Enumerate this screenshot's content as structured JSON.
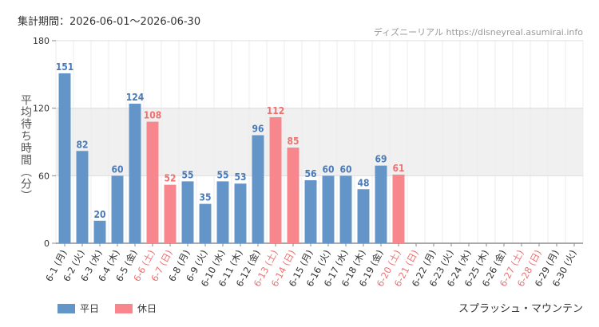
{
  "header": {
    "period": "集計期間：2026-06-01～2026-06-30",
    "credit": "ディズニーリアル https://disneyreal.asumirai.info"
  },
  "footer": {
    "attraction": "スプラッシュ・マウンテン"
  },
  "colors": {
    "weekday": "#6495c8",
    "holiday": "#f7878c",
    "holiday_label": "#f07070",
    "band": "#f0f0f0"
  },
  "chart_data": {
    "type": "bar",
    "ylabel": "平均待ち時間（分）",
    "ylim": [
      0,
      180
    ],
    "yticks": [
      0,
      60,
      120,
      180
    ],
    "shaded_band": [
      60,
      120
    ],
    "grid": true,
    "legend_position": "bottom-left",
    "categories": [
      "6-1 (月)",
      "6-2 (火)",
      "6-3 (水)",
      "6-4 (木)",
      "6-5 (金)",
      "6-6 (土)",
      "6-7 (日)",
      "6-8 (月)",
      "6-9 (火)",
      "6-10 (水)",
      "6-11 (木)",
      "6-12 (金)",
      "6-13 (土)",
      "6-14 (日)",
      "6-15 (月)",
      "6-16 (火)",
      "6-17 (水)",
      "6-18 (木)",
      "6-19 (金)",
      "6-20 (土)",
      "6-21 (日)",
      "6-22 (月)",
      "6-23 (火)",
      "6-24 (水)",
      "6-25 (木)",
      "6-26 (金)",
      "6-27 (土)",
      "6-28 (日)",
      "6-29 (月)",
      "6-30 (火)"
    ],
    "values": [
      151,
      82,
      20,
      60,
      124,
      108,
      52,
      55,
      35,
      55,
      53,
      96,
      112,
      85,
      56,
      60,
      60,
      48,
      69,
      61,
      null,
      null,
      null,
      null,
      null,
      null,
      null,
      null,
      null,
      null
    ],
    "holiday": [
      false,
      false,
      false,
      false,
      false,
      true,
      true,
      false,
      false,
      false,
      false,
      false,
      true,
      true,
      false,
      false,
      false,
      false,
      false,
      true,
      true,
      false,
      false,
      false,
      false,
      false,
      true,
      true,
      false,
      false
    ],
    "series": [
      {
        "name": "平日"
      },
      {
        "name": "休日"
      }
    ]
  }
}
